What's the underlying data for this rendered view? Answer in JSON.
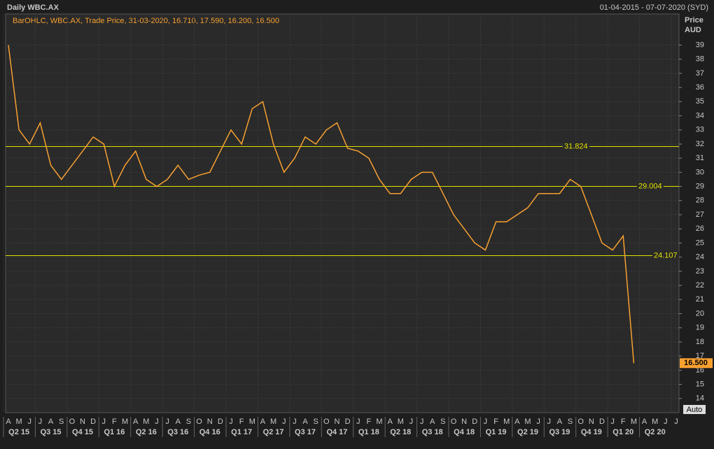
{
  "chart_data": {
    "type": "line",
    "title": "Daily WBC.AX",
    "date_range": "01-04-2015 - 07-07-2020 (SYD)",
    "legend_text": "BarOHLC, WBC.AX, Trade Price, 31-03-2020, 16.710, 17.590, 16.200, 16.500",
    "y_label": "Price",
    "y_unit": "AUD",
    "auto_label": "Auto",
    "grid": true,
    "categories": [
      "A",
      "M",
      "J",
      "J",
      "A",
      "S",
      "O",
      "N",
      "D",
      "J",
      "F",
      "M",
      "A",
      "M",
      "J",
      "J",
      "A",
      "S",
      "O",
      "N",
      "D",
      "J",
      "F",
      "M",
      "A",
      "M",
      "J",
      "J",
      "A",
      "S",
      "O",
      "N",
      "D",
      "J",
      "F",
      "M",
      "A",
      "M",
      "J",
      "J",
      "A",
      "S",
      "O",
      "N",
      "D",
      "J",
      "F",
      "M",
      "A",
      "M",
      "J",
      "J",
      "A",
      "S",
      "O",
      "N",
      "D",
      "J",
      "F",
      "M",
      "A",
      "M",
      "J",
      "J"
    ],
    "quarters": [
      "Q2 15",
      "Q3 15",
      "Q4 15",
      "Q1 16",
      "Q2 16",
      "Q3 16",
      "Q4 16",
      "Q1 17",
      "Q2 17",
      "Q3 17",
      "Q4 17",
      "Q1 18",
      "Q2 18",
      "Q3 18",
      "Q4 18",
      "Q1 19",
      "Q2 19",
      "Q3 19",
      "Q4 19",
      "Q1 20",
      "Q2 20"
    ],
    "series": [
      {
        "name": "WBC.AX",
        "color": "#f7a030",
        "values": [
          39,
          33,
          32,
          33.5,
          30.5,
          29.5,
          30.5,
          31.5,
          32.5,
          32,
          29,
          30.5,
          31.5,
          29.5,
          29,
          29.5,
          30.5,
          29.5,
          29.8,
          30,
          31.5,
          33,
          32,
          34.5,
          35,
          32,
          30,
          31,
          32.5,
          32,
          33,
          33.5,
          31.7,
          31.5,
          31,
          29.5,
          28.5,
          28.5,
          29.5,
          30,
          30,
          28.5,
          27,
          26,
          25,
          24.5,
          26.5,
          26.5,
          27,
          27.5,
          28.5,
          28.5,
          28.5,
          29.5,
          29,
          27,
          25,
          24.5,
          25.5,
          16.5,
          null,
          null,
          null,
          null
        ]
      }
    ],
    "levels": [
      31.824,
      29.004,
      24.107
    ],
    "last_value": {
      "value": 16.5,
      "label": "16.500"
    },
    "ylim": [
      13,
      41.2
    ],
    "yticks": [
      14,
      15,
      16,
      17,
      18,
      19,
      20,
      21,
      22,
      23,
      24,
      25,
      26,
      27,
      28,
      29,
      30,
      31,
      32,
      33,
      34,
      35,
      36,
      37,
      38,
      39
    ]
  }
}
